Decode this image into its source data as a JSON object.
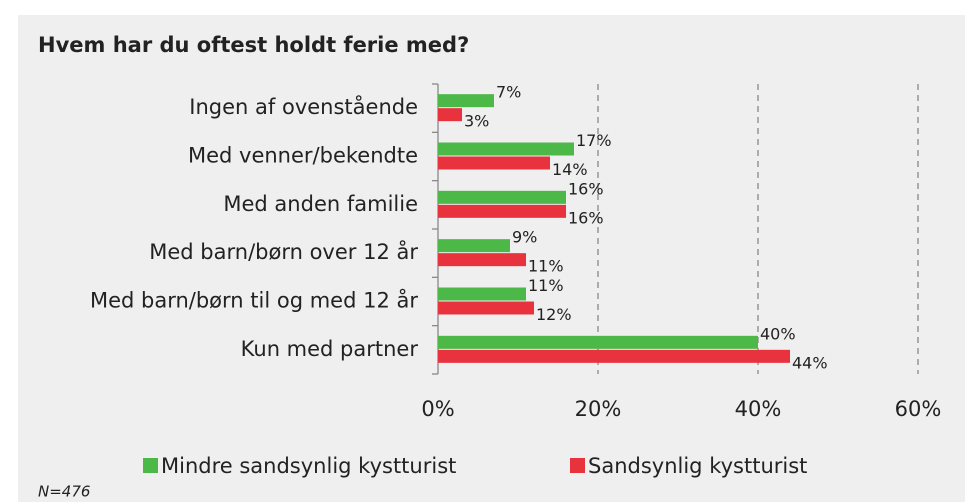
{
  "chart_data": {
    "type": "barh",
    "title": "Hvem har du oftest holdt ferie med?",
    "categories": [
      "Ingen af ovenstående",
      "Med venner/bekendte",
      "Med anden familie",
      "Med barn/børn over 12 år",
      "Med barn/børn til og med 12 år",
      "Kun med partner"
    ],
    "series": [
      {
        "name": "Mindre sandsynlig kystturist",
        "color": "#4cb847",
        "values": [
          7,
          17,
          16,
          9,
          11,
          40
        ],
        "value_labels": [
          "7%",
          "17%",
          "16%",
          "9%",
          "11%",
          "40%"
        ]
      },
      {
        "name": "Sandsynlig kystturist",
        "color": "#e8333f",
        "values": [
          3,
          14,
          16,
          11,
          12,
          44
        ],
        "value_labels": [
          "3%",
          "14%",
          "16%",
          "11%",
          "12%",
          "44%"
        ]
      }
    ],
    "xlim": [
      0,
      60
    ],
    "xticks": [
      {
        "value": 0,
        "label": "0%"
      },
      {
        "value": 20,
        "label": "20%"
      },
      {
        "value": 40,
        "label": "40%"
      },
      {
        "value": 60,
        "label": "60%"
      }
    ],
    "grid": true,
    "legend": "bottom",
    "note": "N=476"
  }
}
